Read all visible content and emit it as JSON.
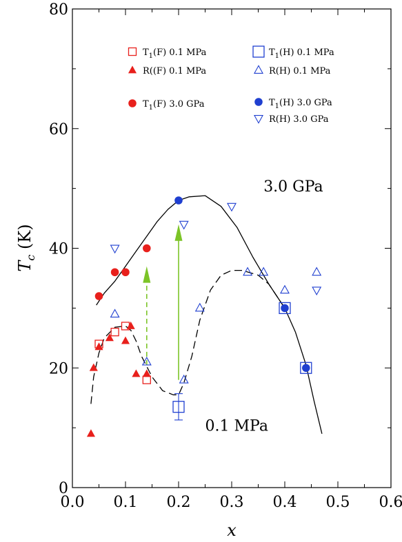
{
  "chart_data": {
    "type": "scatter",
    "xlabel": "x",
    "ylabel_italic": "T",
    "ylabel_sub": "c",
    "ylabel_unit": " (K)",
    "xlim": [
      0.0,
      0.6
    ],
    "ylim": [
      0,
      80
    ],
    "xticks": [
      "0.0",
      "0.1",
      "0.2",
      "0.3",
      "0.4",
      "0.5",
      "0.6"
    ],
    "yticks": [
      "0",
      "20",
      "40",
      "60",
      "80"
    ],
    "grid": false,
    "legend_placement": "top",
    "colors": {
      "red": "#e8201c",
      "blue": "#1f3fd0",
      "green": "#7cc427",
      "black": "#000000"
    },
    "series": [
      {
        "name": "T1(F) 0.1 MPa",
        "label_main": "T",
        "label_sub": "1",
        "label_rest": "(F) 0.1 MPa",
        "marker": "square-open",
        "color": "#e8201c",
        "points": [
          [
            0.05,
            24
          ],
          [
            0.08,
            26
          ],
          [
            0.1,
            27
          ],
          [
            0.14,
            18
          ]
        ]
      },
      {
        "name": "R((F) 0.1 MPa",
        "label_main": "R((F) 0.1 MPa",
        "label_sub": "",
        "label_rest": "",
        "marker": "triangle-up-filled",
        "color": "#e8201c",
        "points": [
          [
            0.035,
            9
          ],
          [
            0.04,
            20
          ],
          [
            0.05,
            23.5
          ],
          [
            0.07,
            25
          ],
          [
            0.1,
            24.5
          ],
          [
            0.11,
            27
          ],
          [
            0.12,
            19
          ],
          [
            0.14,
            19
          ]
        ]
      },
      {
        "name": "T1(F) 3.0 GPa",
        "label_main": "T",
        "label_sub": "1",
        "label_rest": "(F) 3.0 GPa",
        "marker": "circle-filled",
        "color": "#e8201c",
        "points": [
          [
            0.05,
            32
          ],
          [
            0.08,
            36
          ],
          [
            0.1,
            36
          ],
          [
            0.14,
            40
          ]
        ]
      },
      {
        "name": "T1(H) 0.1 MPa",
        "label_main": "T",
        "label_sub": "1",
        "label_rest": "(H) 0.1 MPa",
        "marker": "square-open-large",
        "color": "#1f3fd0",
        "points": [
          [
            0.2,
            13.5
          ],
          [
            0.4,
            30
          ],
          [
            0.44,
            20
          ]
        ]
      },
      {
        "name": "R(H) 0.1 MPa",
        "label_main": "R(H) 0.1 MPa",
        "label_sub": "",
        "label_rest": "",
        "marker": "triangle-up-open",
        "color": "#1f3fd0",
        "points": [
          [
            0.08,
            29
          ],
          [
            0.14,
            21
          ],
          [
            0.21,
            18
          ],
          [
            0.24,
            30
          ],
          [
            0.33,
            36
          ],
          [
            0.36,
            36
          ],
          [
            0.4,
            33
          ],
          [
            0.46,
            36
          ]
        ]
      },
      {
        "name": "T1(H) 3.0 GPa",
        "label_main": "T",
        "label_sub": "1",
        "label_rest": "(H) 3.0 GPa",
        "marker": "circle-filled",
        "color": "#1f3fd0",
        "points": [
          [
            0.2,
            48
          ],
          [
            0.4,
            30
          ],
          [
            0.44,
            20
          ]
        ]
      },
      {
        "name": "R(H) 3.0 GPa",
        "label_main": "R(H) 3.0 GPa",
        "label_sub": "",
        "label_rest": "",
        "marker": "triangle-down-open",
        "color": "#1f3fd0",
        "points": [
          [
            0.08,
            40
          ],
          [
            0.21,
            44
          ],
          [
            0.3,
            47
          ],
          [
            0.46,
            33
          ]
        ]
      }
    ],
    "curves": [
      {
        "style": "solid",
        "color": "#000000",
        "points": [
          [
            0.045,
            30.5
          ],
          [
            0.06,
            32.5
          ],
          [
            0.08,
            34.5
          ],
          [
            0.1,
            37
          ],
          [
            0.12,
            39.5
          ],
          [
            0.14,
            42
          ],
          [
            0.16,
            44.5
          ],
          [
            0.18,
            46.5
          ],
          [
            0.2,
            48
          ],
          [
            0.22,
            48.6
          ],
          [
            0.25,
            48.8
          ],
          [
            0.28,
            47
          ],
          [
            0.31,
            43.5
          ],
          [
            0.34,
            38.5
          ],
          [
            0.37,
            34
          ],
          [
            0.4,
            30
          ],
          [
            0.42,
            26
          ],
          [
            0.44,
            20.5
          ],
          [
            0.455,
            14.5
          ],
          [
            0.47,
            9
          ]
        ]
      },
      {
        "style": "dashed",
        "color": "#000000",
        "points": [
          [
            0.035,
            14
          ],
          [
            0.04,
            18.5
          ],
          [
            0.05,
            22.5
          ],
          [
            0.06,
            25
          ],
          [
            0.08,
            26.8
          ],
          [
            0.1,
            27
          ],
          [
            0.11,
            26.3
          ],
          [
            0.12,
            24.5
          ],
          [
            0.13,
            22
          ],
          [
            0.15,
            18.5
          ],
          [
            0.17,
            16.2
          ],
          [
            0.19,
            15.5
          ],
          [
            0.2,
            15.5
          ],
          [
            0.21,
            17.5
          ],
          [
            0.225,
            22
          ],
          [
            0.24,
            28
          ],
          [
            0.26,
            33
          ],
          [
            0.28,
            35.5
          ],
          [
            0.3,
            36.3
          ],
          [
            0.32,
            36.3
          ],
          [
            0.35,
            35.5
          ],
          [
            0.37,
            34
          ],
          [
            0.4,
            30
          ]
        ]
      }
    ],
    "arrows": [
      {
        "style": "dashed",
        "color": "#7cc427",
        "x": 0.14,
        "y_from": 20.5,
        "y_to": 37
      },
      {
        "style": "solid",
        "color": "#7cc427",
        "x": 0.2,
        "y_from": 18,
        "y_to": 44
      }
    ],
    "annotations": [
      {
        "text": "3.0 GPa",
        "x": 0.36,
        "y": 49.5
      },
      {
        "text": "0.1 MPa",
        "x": 0.25,
        "y": 9.5
      }
    ]
  }
}
